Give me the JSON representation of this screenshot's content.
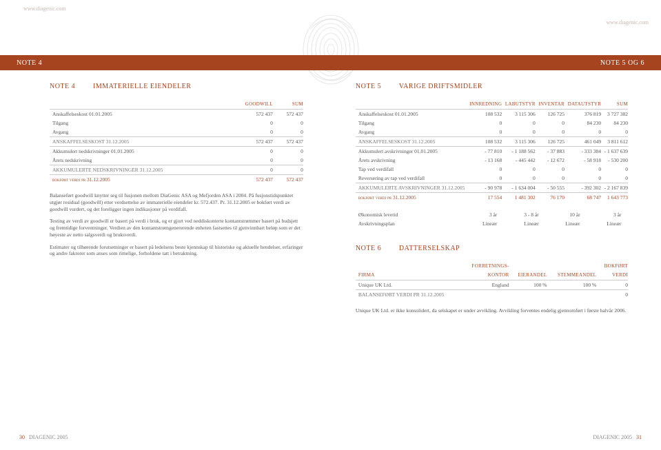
{
  "watermark_left": "www.diagenic.com",
  "watermark_right": "www.diagenic.com",
  "topbar": {
    "left": "NOTE 4",
    "right": "NOTE 5 OG 6"
  },
  "colors": {
    "accent": "#a5441e",
    "text": "#555555",
    "rule": "#cccccc"
  },
  "left_page": {
    "title_num": "NOTE 4",
    "title_text": "IMMATERIELLE EIENDELER",
    "columns": [
      "",
      "GOODWILL",
      "SUM"
    ],
    "rows": [
      {
        "cells": [
          "Anskaffelseskost 01.01.2005",
          "572 437",
          "572 437"
        ],
        "style": ""
      },
      {
        "cells": [
          "Tilgang",
          "0",
          "0"
        ],
        "style": ""
      },
      {
        "cells": [
          "Avgang",
          "0",
          "0"
        ],
        "style": ""
      },
      {
        "cells": [
          "anskaffelseskost 31.12.2005",
          "572 437",
          "572 437"
        ],
        "style": "rowline section"
      },
      {
        "cells": [
          "Akkumulert nedskrivninger 01.01.2005",
          "0",
          "0"
        ],
        "style": "rowline"
      },
      {
        "cells": [
          "Årets nedskrivning",
          "0",
          "0"
        ],
        "style": ""
      },
      {
        "cells": [
          "akkumulerte nedskrivninger 31.12.2005",
          "0",
          "0"
        ],
        "style": "rowline section"
      },
      {
        "cells": [
          "bokført verdi pr 31.12.2005",
          "572 437",
          "572 437"
        ],
        "style": "rowline highlight"
      }
    ],
    "paragraphs": [
      "Balanseført goodwill knytter seg til fusjonen mellom DiaGenic ASA og Mefjorden ASA i 2004. På fusjonstidspunktet utgjør residual (goodwill) etter verdsettelse av immaterielle eiendeler kr. 572.437. Pr. 31.12.2005 er bokført verdi av goodwill vurdert, og det foreligger ingen indikasjoner på verdifall.",
      "Testing av verdi av goodwill er basert på verdi i bruk, og er gjort ved neddiskonterte kontantstrømmer basert på budsjett og fremtidige forventninger. Verdien av den kontantstrømgenererende enheten fastsettes til gjenvinnbart beløp som er det høyeste av netto salgsverdi og bruksverdi.",
      "Estimater og tilhørende forutsetninger er basert på ledelsens beste kjennskap til historiske og aktuelle hendelser, erfaringer og andre faktorer som anses som rimelige, forholdene tatt i betraktning."
    ]
  },
  "note5": {
    "title_num": "NOTE 5",
    "title_text": "VARIGE DRIFTSMIDLER",
    "columns": [
      "",
      "INNREDNING",
      "LABUTSTYR",
      "INVENTAR",
      "DATAUTSTYR",
      "SUM"
    ],
    "rows": [
      {
        "cells": [
          "Anskaffelseskost 01.01.2005",
          "108 532",
          "3 115 306",
          "126 725",
          "376 819",
          "3 727 382"
        ],
        "style": ""
      },
      {
        "cells": [
          "Tilgang",
          "0",
          "0",
          "0",
          "84 230",
          "84 230"
        ],
        "style": ""
      },
      {
        "cells": [
          "Avgang",
          "0",
          "0",
          "0",
          "0",
          "0"
        ],
        "style": ""
      },
      {
        "cells": [
          "anskaffelseskost 31.12.2005",
          "108 532",
          "3 115 306",
          "126 725",
          "461 049",
          "3 811 612"
        ],
        "style": "rowline section"
      },
      {
        "cells": [
          "Akkumulert avskrivninger 01.01.2005",
          "- 77 810",
          "- 1 188 562",
          "- 37 883",
          "- 333 384",
          "- 1 637 639"
        ],
        "style": "rowline"
      },
      {
        "cells": [
          "Årets avskrivning",
          "- 13 168",
          "- 445 442",
          "- 12 672",
          "- 58 918",
          "- 530 200"
        ],
        "style": ""
      },
      {
        "cells": [
          "Tap ved verdifall",
          "0",
          "0",
          "0",
          "0",
          "0"
        ],
        "style": ""
      },
      {
        "cells": [
          "Reversering av tap ved verdifall",
          "0",
          "0",
          "0",
          "0",
          "0"
        ],
        "style": ""
      },
      {
        "cells": [
          "akkumulerte avskrivninger 31.12.2005",
          "- 90 978",
          "- 1 634 004",
          "- 50 555",
          "- 392 302",
          "- 2 167 839"
        ],
        "style": "rowline section"
      },
      {
        "cells": [
          "bokført verdi pr 31.12.2005",
          "17 554",
          "1 481 302",
          "76 170",
          "68 747",
          "1 643 773"
        ],
        "style": "rowline highlight"
      }
    ],
    "extra": [
      {
        "cells": [
          "Økonomisk levetid",
          "3 år",
          "3 - 8 år",
          "10 år",
          "3 år",
          ""
        ],
        "style": ""
      },
      {
        "cells": [
          "Avskrivningsplan",
          "Lineær",
          "Lineær",
          "Lineær",
          "Lineær",
          ""
        ],
        "style": ""
      }
    ]
  },
  "note6": {
    "title_num": "NOTE 6",
    "title_text": "DATTERSELSKAP",
    "header_top": [
      "",
      "FORRETNINGS-",
      "",
      "",
      "BOKFØRT"
    ],
    "columns": [
      "FIRMA",
      "KONTOR",
      "EIERANDEL",
      "STEMMEANDEL",
      "VERDI"
    ],
    "rows": [
      {
        "cells": [
          "Unique UK Ltd.",
          "England",
          "100 %",
          "100 %",
          "0"
        ],
        "style": ""
      },
      {
        "cells": [
          "balanseført verdi pr 31.12.2005",
          "",
          "",
          "",
          "0"
        ],
        "style": "rowline section"
      }
    ],
    "paragraph": "Unique UK Ltd. er ikke konsolidert, da selskapet er under avvikling. Avvikling forventes endelig gjennomført i første halvår 2006."
  },
  "footer": {
    "left_page": "30",
    "left_label": "DIAGENIC 2005",
    "right_label": "DIAGENIC 2005",
    "right_page": "31"
  }
}
